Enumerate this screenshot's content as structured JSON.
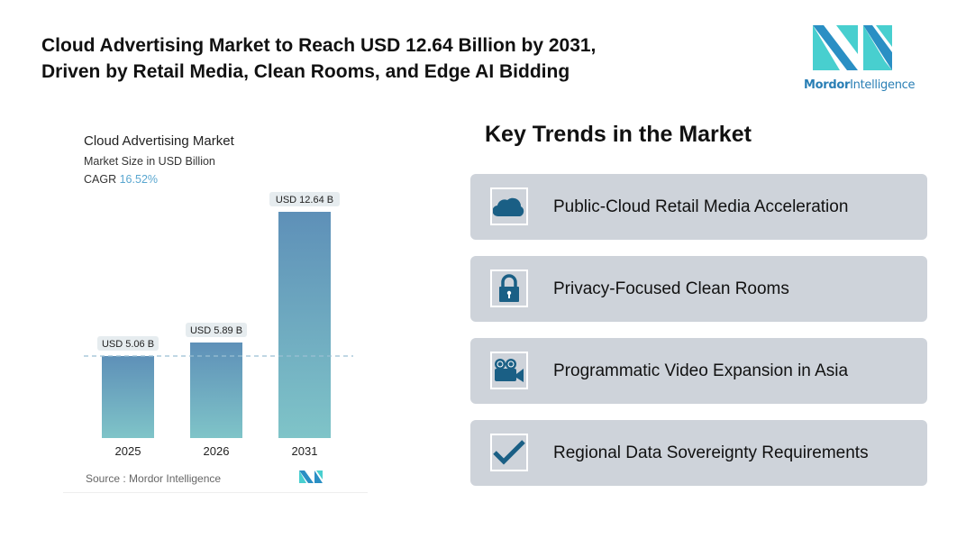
{
  "header": {
    "title_line1": "Cloud Advertising Market to Reach USD 12.64 Billion by 2031,",
    "title_line2": "Driven by Retail Media, Clean Rooms, and Edge AI Bidding"
  },
  "logo": {
    "word1": "Mordor",
    "word2": "Intelligence"
  },
  "chart_data": {
    "type": "bar",
    "title": "Cloud Advertising Market",
    "subtitle": "Market Size in USD Billion",
    "cagr_label": "CAGR",
    "cagr_value": "16.52%",
    "categories": [
      "2025",
      "2026",
      "2031"
    ],
    "values": [
      5.06,
      5.89,
      12.64
    ],
    "data_labels": [
      "USD 5.06 B",
      "USD 5.89 B",
      "USD 12.64 B"
    ],
    "source": "Source :  Mordor Intelligence",
    "colors": {
      "bar_top": "#5e90b8",
      "bar_bottom": "#7fc4c8",
      "cagr": "#5aa7d0"
    },
    "grid": false
  },
  "trends": {
    "heading": "Key Trends in the Market",
    "items": [
      {
        "label": "Public-Cloud Retail Media Acceleration",
        "icon": "cloud-icon"
      },
      {
        "label": "Privacy-Focused Clean Rooms",
        "icon": "lock-icon"
      },
      {
        "label": "Programmatic Video Expansion in Asia",
        "icon": "video-camera-icon"
      },
      {
        "label": "Regional Data Sovereignty Requirements",
        "icon": "checkmark-icon"
      }
    ]
  },
  "colors": {
    "icon": "#1a5f85",
    "card": "#ced3da"
  }
}
